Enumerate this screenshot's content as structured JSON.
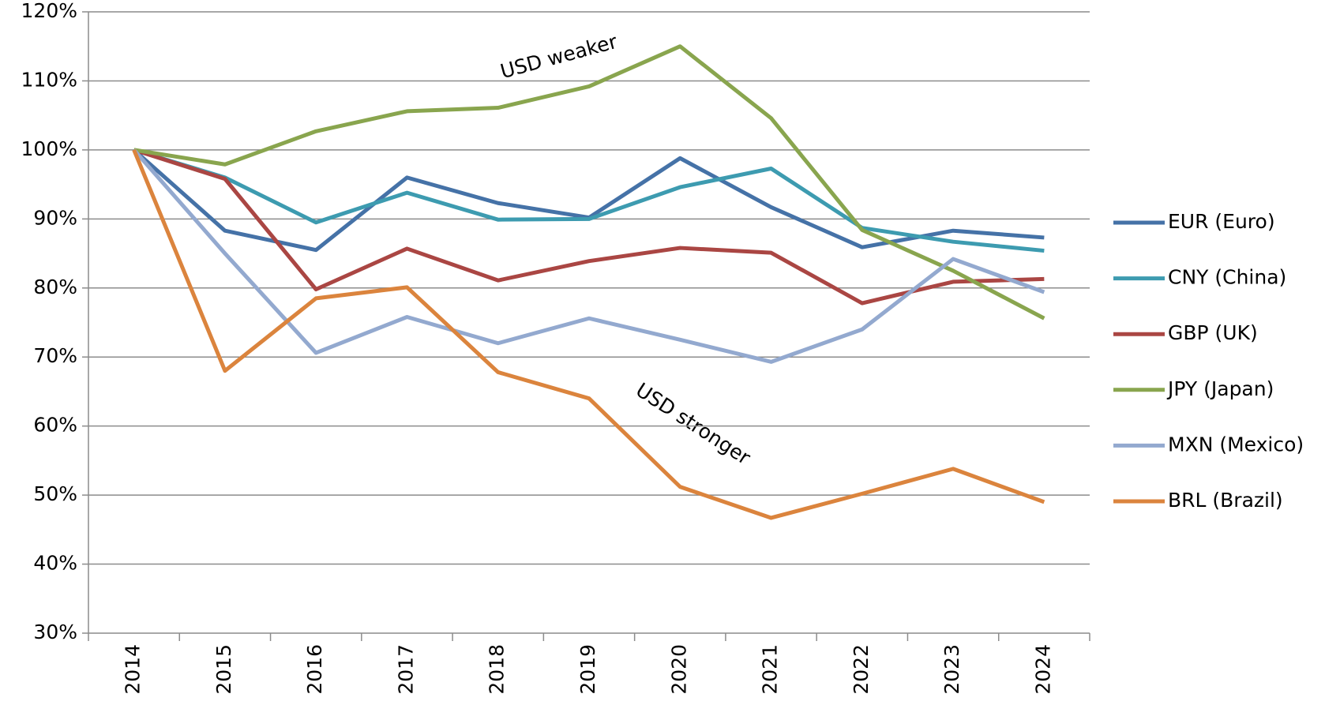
{
  "chart_data": {
    "type": "line",
    "categories": [
      "2014",
      "2015",
      "2016",
      "2017",
      "2018",
      "2019",
      "2020",
      "2021",
      "2022",
      "2023",
      "2024"
    ],
    "series": [
      {
        "name": "EUR (Euro)",
        "color": "#4572a7",
        "values": [
          100,
          88.3,
          85.5,
          96,
          92.3,
          90.2,
          98.8,
          91.7,
          85.9,
          88.3,
          87.3
        ]
      },
      {
        "name": "CNY (China)",
        "color": "#3d9bb0",
        "values": [
          100,
          96,
          89.5,
          93.8,
          89.9,
          90,
          94.6,
          97.3,
          88.7,
          86.7,
          85.4
        ]
      },
      {
        "name": "GBP (UK)",
        "color": "#aa4643",
        "values": [
          100,
          95.8,
          79.8,
          85.7,
          81.1,
          83.9,
          85.8,
          85.1,
          77.8,
          80.9,
          81.3
        ]
      },
      {
        "name": "JPY (Japan)",
        "color": "#89a54e",
        "values": [
          100,
          97.9,
          102.7,
          105.6,
          106.1,
          109.2,
          115,
          104.6,
          88.4,
          82.5,
          75.6
        ]
      },
      {
        "name": "MXN (Mexico)",
        "color": "#93a9cf",
        "values": [
          100,
          85,
          70.6,
          75.8,
          72,
          75.6,
          72.5,
          69.3,
          74,
          84.2,
          79.4
        ]
      },
      {
        "name": "BRL (Brazil)",
        "color": "#db843d",
        "values": [
          100,
          68,
          78.5,
          80.1,
          67.8,
          64,
          51.2,
          46.7,
          50.2,
          53.8,
          49
        ]
      }
    ],
    "ylim": [
      30,
      120
    ],
    "yticks": [
      {
        "value": 30,
        "label": "30%"
      },
      {
        "value": 40,
        "label": "40%"
      },
      {
        "value": 50,
        "label": "50%"
      },
      {
        "value": 60,
        "label": "60%"
      },
      {
        "value": 70,
        "label": "70%"
      },
      {
        "value": 80,
        "label": "80%"
      },
      {
        "value": 90,
        "label": "90%"
      },
      {
        "value": 100,
        "label": "100%"
      },
      {
        "value": 110,
        "label": "110%"
      },
      {
        "value": 120,
        "label": "120%"
      }
    ],
    "grid": true,
    "legend": "right",
    "annotations": [
      "USD weaker",
      "USD stronger"
    ]
  }
}
